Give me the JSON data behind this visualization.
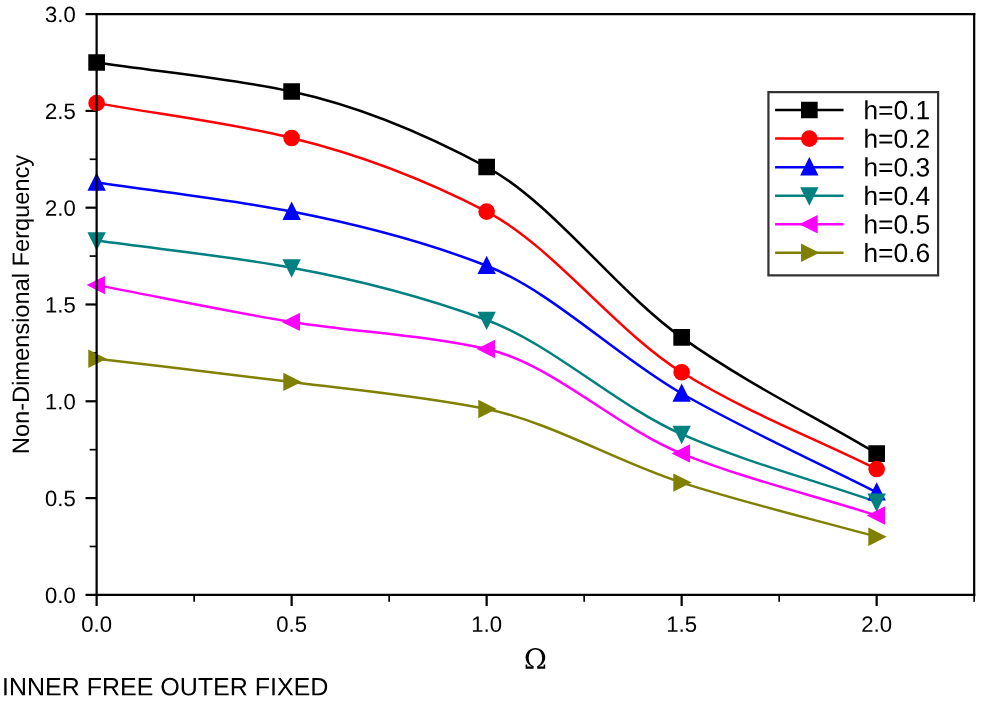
{
  "chart_data": {
    "type": "line",
    "xlabel": "Ω",
    "ylabel": "Non-Dimensional Ferquency",
    "annotations": [
      "INNER FREE OUTER FIXED"
    ],
    "x": [
      0,
      0.5,
      1.0,
      1.5,
      2.0
    ],
    "xlim": [
      0,
      2.25
    ],
    "xticks": [
      {
        "value": 0,
        "label": "0.0"
      },
      0.5,
      {
        "value": 1,
        "label": "1.0"
      },
      1.5,
      {
        "value": 2,
        "label": "2.0"
      }
    ],
    "ylim": [
      0,
      3.0
    ],
    "yticks": [
      {
        "value": 0,
        "label": "0.0"
      },
      0.5,
      {
        "value": 1,
        "label": "1.0"
      },
      1.5,
      {
        "value": 2,
        "label": "2.0"
      },
      2.5,
      {
        "value": 3,
        "label": "3.0"
      }
    ],
    "grid": false,
    "legend": "top right",
    "series": [
      {
        "name": "h=0.1",
        "color": "#000000",
        "marker": "square",
        "values": [
          2.75,
          2.6,
          2.21,
          1.33,
          0.73
        ]
      },
      {
        "name": "h=0.2",
        "color": "#ff0000",
        "marker": "circle",
        "values": [
          2.54,
          2.36,
          1.98,
          1.15,
          0.65
        ]
      },
      {
        "name": "h=0.3",
        "color": "#0000ff",
        "marker": "triangle",
        "values": [
          2.13,
          1.98,
          1.7,
          1.04,
          0.53
        ]
      },
      {
        "name": "h=0.4",
        "color": "#008080",
        "marker": "triangle-down",
        "values": [
          1.83,
          1.69,
          1.42,
          0.83,
          0.48
        ]
      },
      {
        "name": "h=0.5",
        "color": "#ff00ff",
        "marker": "triangle-left",
        "values": [
          1.6,
          1.41,
          1.27,
          0.73,
          0.41
        ]
      },
      {
        "name": "h=0.6",
        "color": "#808000",
        "marker": "triangle-right",
        "values": [
          1.22,
          1.1,
          0.96,
          0.58,
          0.3
        ]
      }
    ]
  }
}
